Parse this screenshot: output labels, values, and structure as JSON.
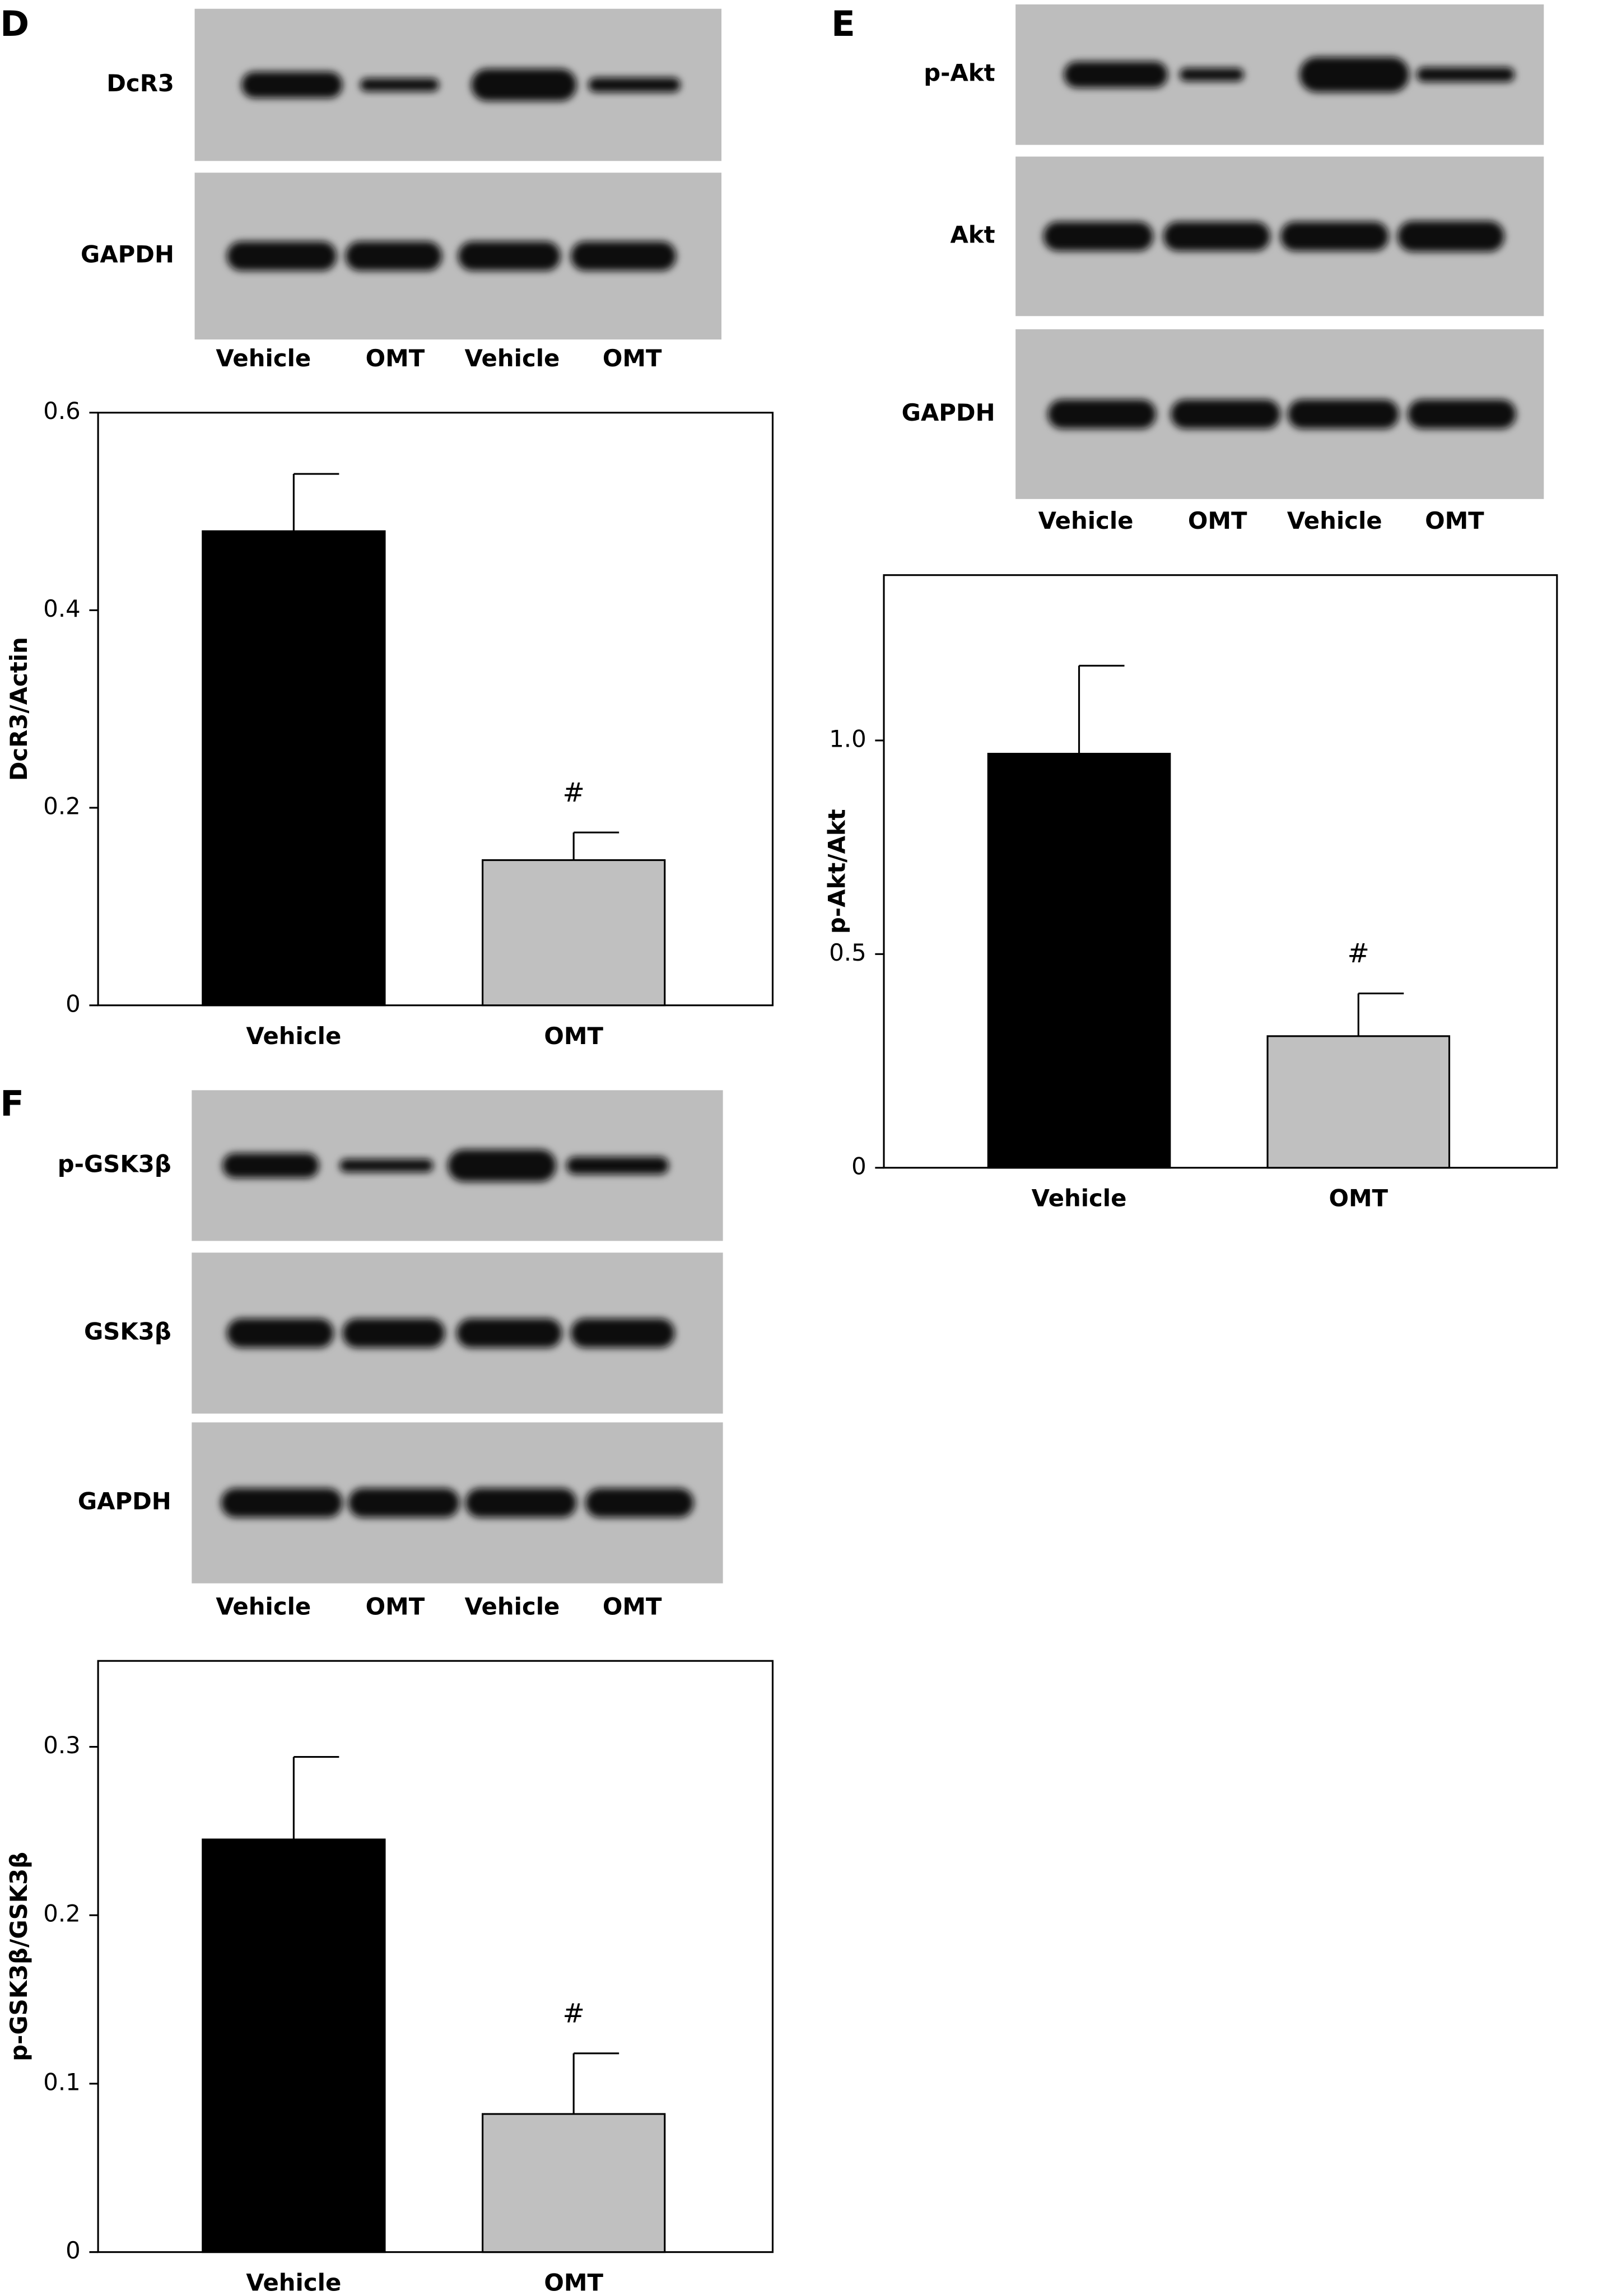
{
  "blots": [
    {
      "label": "D",
      "rows": [
        "DcR3",
        "GAPDH"
      ],
      "lanes": [
        "Vehicle",
        "OMT",
        "Vehicle",
        "OMT"
      ]
    },
    {
      "label": "E",
      "rows": [
        "p-Akt",
        "Akt",
        "GAPDH"
      ],
      "lanes": [
        "Vehicle",
        "OMT",
        "Vehicle",
        "OMT"
      ]
    },
    {
      "label": "F",
      "rows": [
        "p-GSK3β",
        "GSK3β",
        "GAPDH"
      ],
      "lanes": [
        "Vehicle",
        "OMT",
        "Vehicle",
        "OMT"
      ]
    }
  ],
  "chart_data": [
    {
      "type": "bar",
      "y_label": "DcR3/Actin",
      "categories": [
        "Vehicle",
        "OMT"
      ],
      "series": [
        {
          "values": [
            0.48,
            0.147
          ],
          "errors": [
            0.058,
            0.028
          ],
          "colors": [
            "#000000",
            "#c0c0c0"
          ],
          "value_annotations": [
            null,
            "#"
          ]
        }
      ],
      "ylim": [
        0,
        0.6
      ],
      "yticks": [
        0,
        0.2,
        0.4,
        0.6
      ]
    },
    {
      "type": "bar",
      "y_label": "p-Akt/Akt",
      "categories": [
        "Vehicle",
        "OMT"
      ],
      "series": [
        {
          "values": [
            0.969,
            0.308
          ],
          "errors": [
            0.206,
            0.1
          ],
          "colors": [
            "#000000",
            "#c0c0c0"
          ],
          "value_annotations": [
            null,
            "#"
          ]
        }
      ],
      "ylim": [
        0,
        1.387
      ],
      "yticks": [
        0,
        0.5,
        {
          "value": 1,
          "label": "1.0"
        }
      ]
    },
    {
      "type": "bar",
      "y_label": "p-GSK3β/GSK3β",
      "categories": [
        "Vehicle",
        "OMT"
      ],
      "series": [
        {
          "values": [
            0.245,
            0.082
          ],
          "errors": [
            0.049,
            0.036
          ],
          "colors": [
            "#000000",
            "#c0c0c0"
          ],
          "value_annotations": [
            null,
            "#"
          ]
        }
      ],
      "ylim": [
        0,
        0.351
      ],
      "yticks": [
        0,
        0.1,
        0.2,
        0.3
      ]
    }
  ]
}
